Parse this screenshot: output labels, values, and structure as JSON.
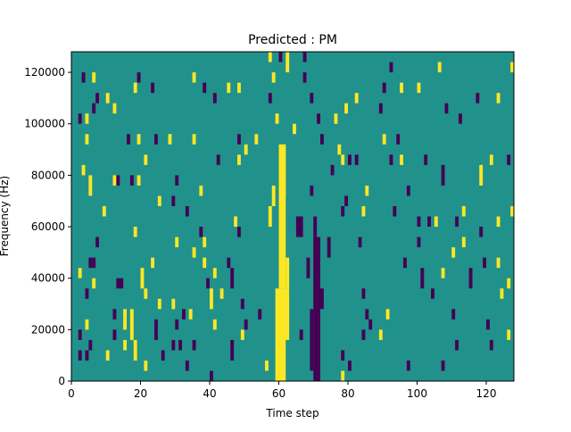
{
  "chart_data": {
    "type": "heatmap",
    "title": "Predicted : PM",
    "xlabel": "Time step",
    "ylabel": "Frequency (Hz)",
    "xlim": [
      0,
      128
    ],
    "ylim": [
      0,
      128000
    ],
    "n_time_steps": 128,
    "n_freq_bins": 32,
    "bin_hz": 4000,
    "xticks": [
      0,
      20,
      40,
      60,
      80,
      100,
      120
    ],
    "xtick_labels": [
      "0",
      "20",
      "40",
      "60",
      "80",
      "100",
      "120"
    ],
    "yticks": [
      0,
      20000,
      40000,
      60000,
      80000,
      100000,
      120000
    ],
    "ytick_labels": [
      "0",
      "20000",
      "40000",
      "60000",
      "80000",
      "100000",
      "120000"
    ],
    "grid": false,
    "colors": {
      "background_value": "#21918c",
      "low": "#440154",
      "high": "#fde725"
    },
    "cell_format": "[time_step, freq_bin, value(0=low,1=high), time_span, bin_span]",
    "cells": [
      [
        59,
        0,
        1,
        3,
        9
      ],
      [
        60,
        9,
        1,
        2,
        14
      ],
      [
        61,
        4,
        1,
        2,
        5
      ],
      [
        62,
        9,
        1,
        1,
        3
      ],
      [
        57,
        15,
        1,
        1,
        2
      ],
      [
        58,
        17,
        1,
        1,
        2
      ],
      [
        61,
        18,
        1,
        1,
        5
      ],
      [
        70,
        0,
        0,
        2,
        14
      ],
      [
        69,
        1,
        0,
        1,
        6
      ],
      [
        72,
        7,
        0,
        1,
        2
      ],
      [
        66,
        4,
        0,
        1,
        1
      ],
      [
        68,
        10,
        0,
        1,
        2
      ],
      [
        74,
        12,
        0,
        1,
        2
      ],
      [
        65,
        14,
        0,
        2,
        2
      ],
      [
        70,
        14,
        0,
        1,
        2
      ],
      [
        57,
        31,
        1
      ],
      [
        60,
        31,
        0
      ],
      [
        62,
        30,
        1,
        1,
        2
      ],
      [
        67,
        31,
        0
      ],
      [
        58,
        29,
        1
      ],
      [
        67,
        29,
        0
      ],
      [
        57,
        27,
        0
      ],
      [
        69,
        27,
        0
      ],
      [
        79,
        26,
        1
      ],
      [
        59,
        25,
        1
      ],
      [
        64,
        24,
        1
      ],
      [
        72,
        23,
        0
      ],
      [
        77,
        22,
        1
      ],
      [
        75,
        20,
        0
      ],
      [
        80,
        21,
        0
      ],
      [
        3,
        29,
        0
      ],
      [
        6,
        29,
        1
      ],
      [
        19,
        29,
        0
      ],
      [
        18,
        28,
        1
      ],
      [
        23,
        28,
        0
      ],
      [
        35,
        29,
        1
      ],
      [
        38,
        28,
        0
      ],
      [
        45,
        28,
        1
      ],
      [
        48,
        28,
        1
      ],
      [
        7,
        27,
        0
      ],
      [
        10,
        27,
        1
      ],
      [
        2,
        25,
        0
      ],
      [
        4,
        25,
        1
      ],
      [
        6,
        26,
        0
      ],
      [
        12,
        26,
        1
      ],
      [
        41,
        27,
        0
      ],
      [
        92,
        30,
        0
      ],
      [
        106,
        30,
        1
      ],
      [
        127,
        30,
        1
      ],
      [
        95,
        28,
        1
      ],
      [
        100,
        28,
        1
      ],
      [
        90,
        28,
        0
      ],
      [
        82,
        27,
        1
      ],
      [
        117,
        27,
        0
      ],
      [
        123,
        27,
        1
      ],
      [
        108,
        26,
        0
      ],
      [
        89,
        26,
        0
      ],
      [
        112,
        25,
        0
      ],
      [
        71,
        25,
        0
      ],
      [
        76,
        25,
        1
      ],
      [
        4,
        23,
        1
      ],
      [
        16,
        23,
        0
      ],
      [
        19,
        23,
        1
      ],
      [
        24,
        23,
        0
      ],
      [
        28,
        23,
        1
      ],
      [
        35,
        23,
        1
      ],
      [
        48,
        23,
        0
      ],
      [
        53,
        23,
        1
      ],
      [
        90,
        23,
        1
      ],
      [
        94,
        23,
        0
      ],
      [
        3,
        20,
        1
      ],
      [
        21,
        21,
        1
      ],
      [
        42,
        21,
        0
      ],
      [
        48,
        21,
        1
      ],
      [
        50,
        22,
        1
      ],
      [
        82,
        21,
        0
      ],
      [
        78,
        21,
        1
      ],
      [
        92,
        21,
        0
      ],
      [
        95,
        21,
        1
      ],
      [
        102,
        21,
        0
      ],
      [
        121,
        21,
        1
      ],
      [
        126,
        21,
        0
      ],
      [
        12,
        19,
        1
      ],
      [
        13,
        19,
        0
      ],
      [
        17,
        19,
        0
      ],
      [
        19,
        19,
        1
      ],
      [
        30,
        19,
        0
      ],
      [
        37,
        18,
        1
      ],
      [
        85,
        18,
        1
      ],
      [
        97,
        18,
        0
      ],
      [
        107,
        19,
        0,
        1,
        2
      ],
      [
        118,
        19,
        1,
        1,
        2
      ],
      [
        5,
        18,
        1,
        1,
        2
      ],
      [
        25,
        17,
        1
      ],
      [
        29,
        17,
        0
      ],
      [
        79,
        17,
        0
      ],
      [
        69,
        18,
        0
      ],
      [
        9,
        16,
        1
      ],
      [
        33,
        16,
        0
      ],
      [
        78,
        16,
        0
      ],
      [
        84,
        16,
        1
      ],
      [
        93,
        16,
        0
      ],
      [
        113,
        16,
        1
      ],
      [
        127,
        16,
        1
      ],
      [
        48,
        14,
        0
      ],
      [
        47,
        15,
        1
      ],
      [
        100,
        15,
        0
      ],
      [
        103,
        15,
        0
      ],
      [
        105,
        15,
        1
      ],
      [
        111,
        15,
        0
      ],
      [
        18,
        14,
        1
      ],
      [
        37,
        14,
        0
      ],
      [
        118,
        14,
        0
      ],
      [
        123,
        15,
        1
      ],
      [
        7,
        13,
        0
      ],
      [
        30,
        13,
        1
      ],
      [
        38,
        13,
        1
      ],
      [
        83,
        13,
        0
      ],
      [
        100,
        13,
        0
      ],
      [
        113,
        13,
        1
      ],
      [
        5,
        11,
        0
      ],
      [
        23,
        11,
        1
      ],
      [
        35,
        12,
        1
      ],
      [
        38,
        11,
        1
      ],
      [
        45,
        11,
        0
      ],
      [
        96,
        11,
        0
      ],
      [
        110,
        12,
        1
      ],
      [
        119,
        11,
        0
      ],
      [
        123,
        11,
        1
      ],
      [
        2,
        10,
        1
      ],
      [
        6,
        11,
        0
      ],
      [
        41,
        10,
        1
      ],
      [
        101,
        10,
        0
      ],
      [
        107,
        10,
        1
      ],
      [
        115,
        10,
        0
      ],
      [
        6,
        9,
        1
      ],
      [
        13,
        9,
        0,
        2,
        1
      ],
      [
        20,
        9,
        1,
        1,
        2
      ],
      [
        39,
        9,
        0
      ],
      [
        46,
        9,
        0,
        1,
        2
      ],
      [
        101,
        9,
        0
      ],
      [
        126,
        9,
        1
      ],
      [
        115,
        9,
        0
      ],
      [
        4,
        8,
        0
      ],
      [
        21,
        8,
        1
      ],
      [
        25,
        7,
        1
      ],
      [
        29,
        7,
        1
      ],
      [
        40,
        7,
        1,
        1,
        2
      ],
      [
        43,
        8,
        1
      ],
      [
        84,
        8,
        0
      ],
      [
        104,
        8,
        0
      ],
      [
        124,
        8,
        1
      ],
      [
        12,
        6,
        0
      ],
      [
        15,
        6,
        1
      ],
      [
        32,
        6,
        0
      ],
      [
        34,
        6,
        1
      ],
      [
        49,
        7,
        0
      ],
      [
        54,
        6,
        0
      ],
      [
        85,
        6,
        0
      ],
      [
        91,
        6,
        1
      ],
      [
        110,
        6,
        0
      ],
      [
        4,
        5,
        1
      ],
      [
        15,
        5,
        1
      ],
      [
        30,
        5,
        0
      ],
      [
        41,
        5,
        1
      ],
      [
        50,
        5,
        0
      ],
      [
        86,
        5,
        0
      ],
      [
        120,
        5,
        0
      ],
      [
        2,
        4,
        0
      ],
      [
        12,
        4,
        0
      ],
      [
        17,
        4,
        1,
        1,
        3
      ],
      [
        24,
        4,
        0,
        1,
        2
      ],
      [
        49,
        4,
        1
      ],
      [
        84,
        4,
        0
      ],
      [
        89,
        4,
        1
      ],
      [
        126,
        4,
        1
      ],
      [
        5,
        3,
        0
      ],
      [
        15,
        3,
        1
      ],
      [
        29,
        3,
        0
      ],
      [
        31,
        3,
        0
      ],
      [
        35,
        3,
        0
      ],
      [
        111,
        3,
        0
      ],
      [
        121,
        3,
        0
      ],
      [
        2,
        2,
        0
      ],
      [
        4,
        2,
        0
      ],
      [
        10,
        2,
        1
      ],
      [
        18,
        2,
        1,
        1,
        2
      ],
      [
        26,
        2,
        0
      ],
      [
        46,
        2,
        0,
        1,
        2
      ],
      [
        78,
        2,
        0
      ],
      [
        21,
        1,
        1
      ],
      [
        33,
        1,
        0
      ],
      [
        56,
        1,
        1
      ],
      [
        80,
        1,
        0
      ],
      [
        97,
        1,
        0
      ],
      [
        107,
        1,
        0
      ],
      [
        40,
        0,
        0
      ],
      [
        78,
        0,
        1
      ]
    ]
  }
}
